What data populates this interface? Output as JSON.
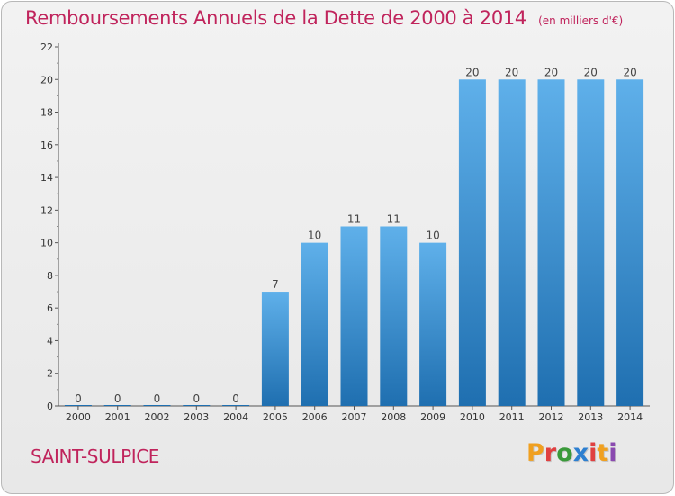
{
  "header": {
    "title": "Remboursements Annuels de la Dette de 2000 à 2014",
    "subtitle": "(en milliers d'€)"
  },
  "footer": {
    "city": "SAINT-SULPICE",
    "brand": "Proxiti",
    "brand_colors": [
      "#f0a020",
      "#e04040",
      "#3a9a3a",
      "#2d7fd0",
      "#e04040",
      "#f0a020",
      "#8a4ab0"
    ]
  },
  "colors": {
    "bar_light": "#5fb0ea",
    "bar_dark": "#1f6fb0",
    "text": "#333333",
    "title": "#c0245c"
  },
  "chart_data": {
    "type": "bar",
    "categories": [
      "2000",
      "2001",
      "2002",
      "2003",
      "2004",
      "2005",
      "2006",
      "2007",
      "2008",
      "2009",
      "2010",
      "2011",
      "2012",
      "2013",
      "2014"
    ],
    "values": [
      0,
      0,
      0,
      0,
      0,
      7,
      10,
      11,
      11,
      10,
      20,
      20,
      20,
      20,
      20
    ],
    "ylim": [
      0,
      22
    ],
    "yticks": [
      0,
      2,
      4,
      6,
      8,
      10,
      12,
      14,
      16,
      18,
      20,
      22
    ],
    "grid": false,
    "legend": "none"
  }
}
